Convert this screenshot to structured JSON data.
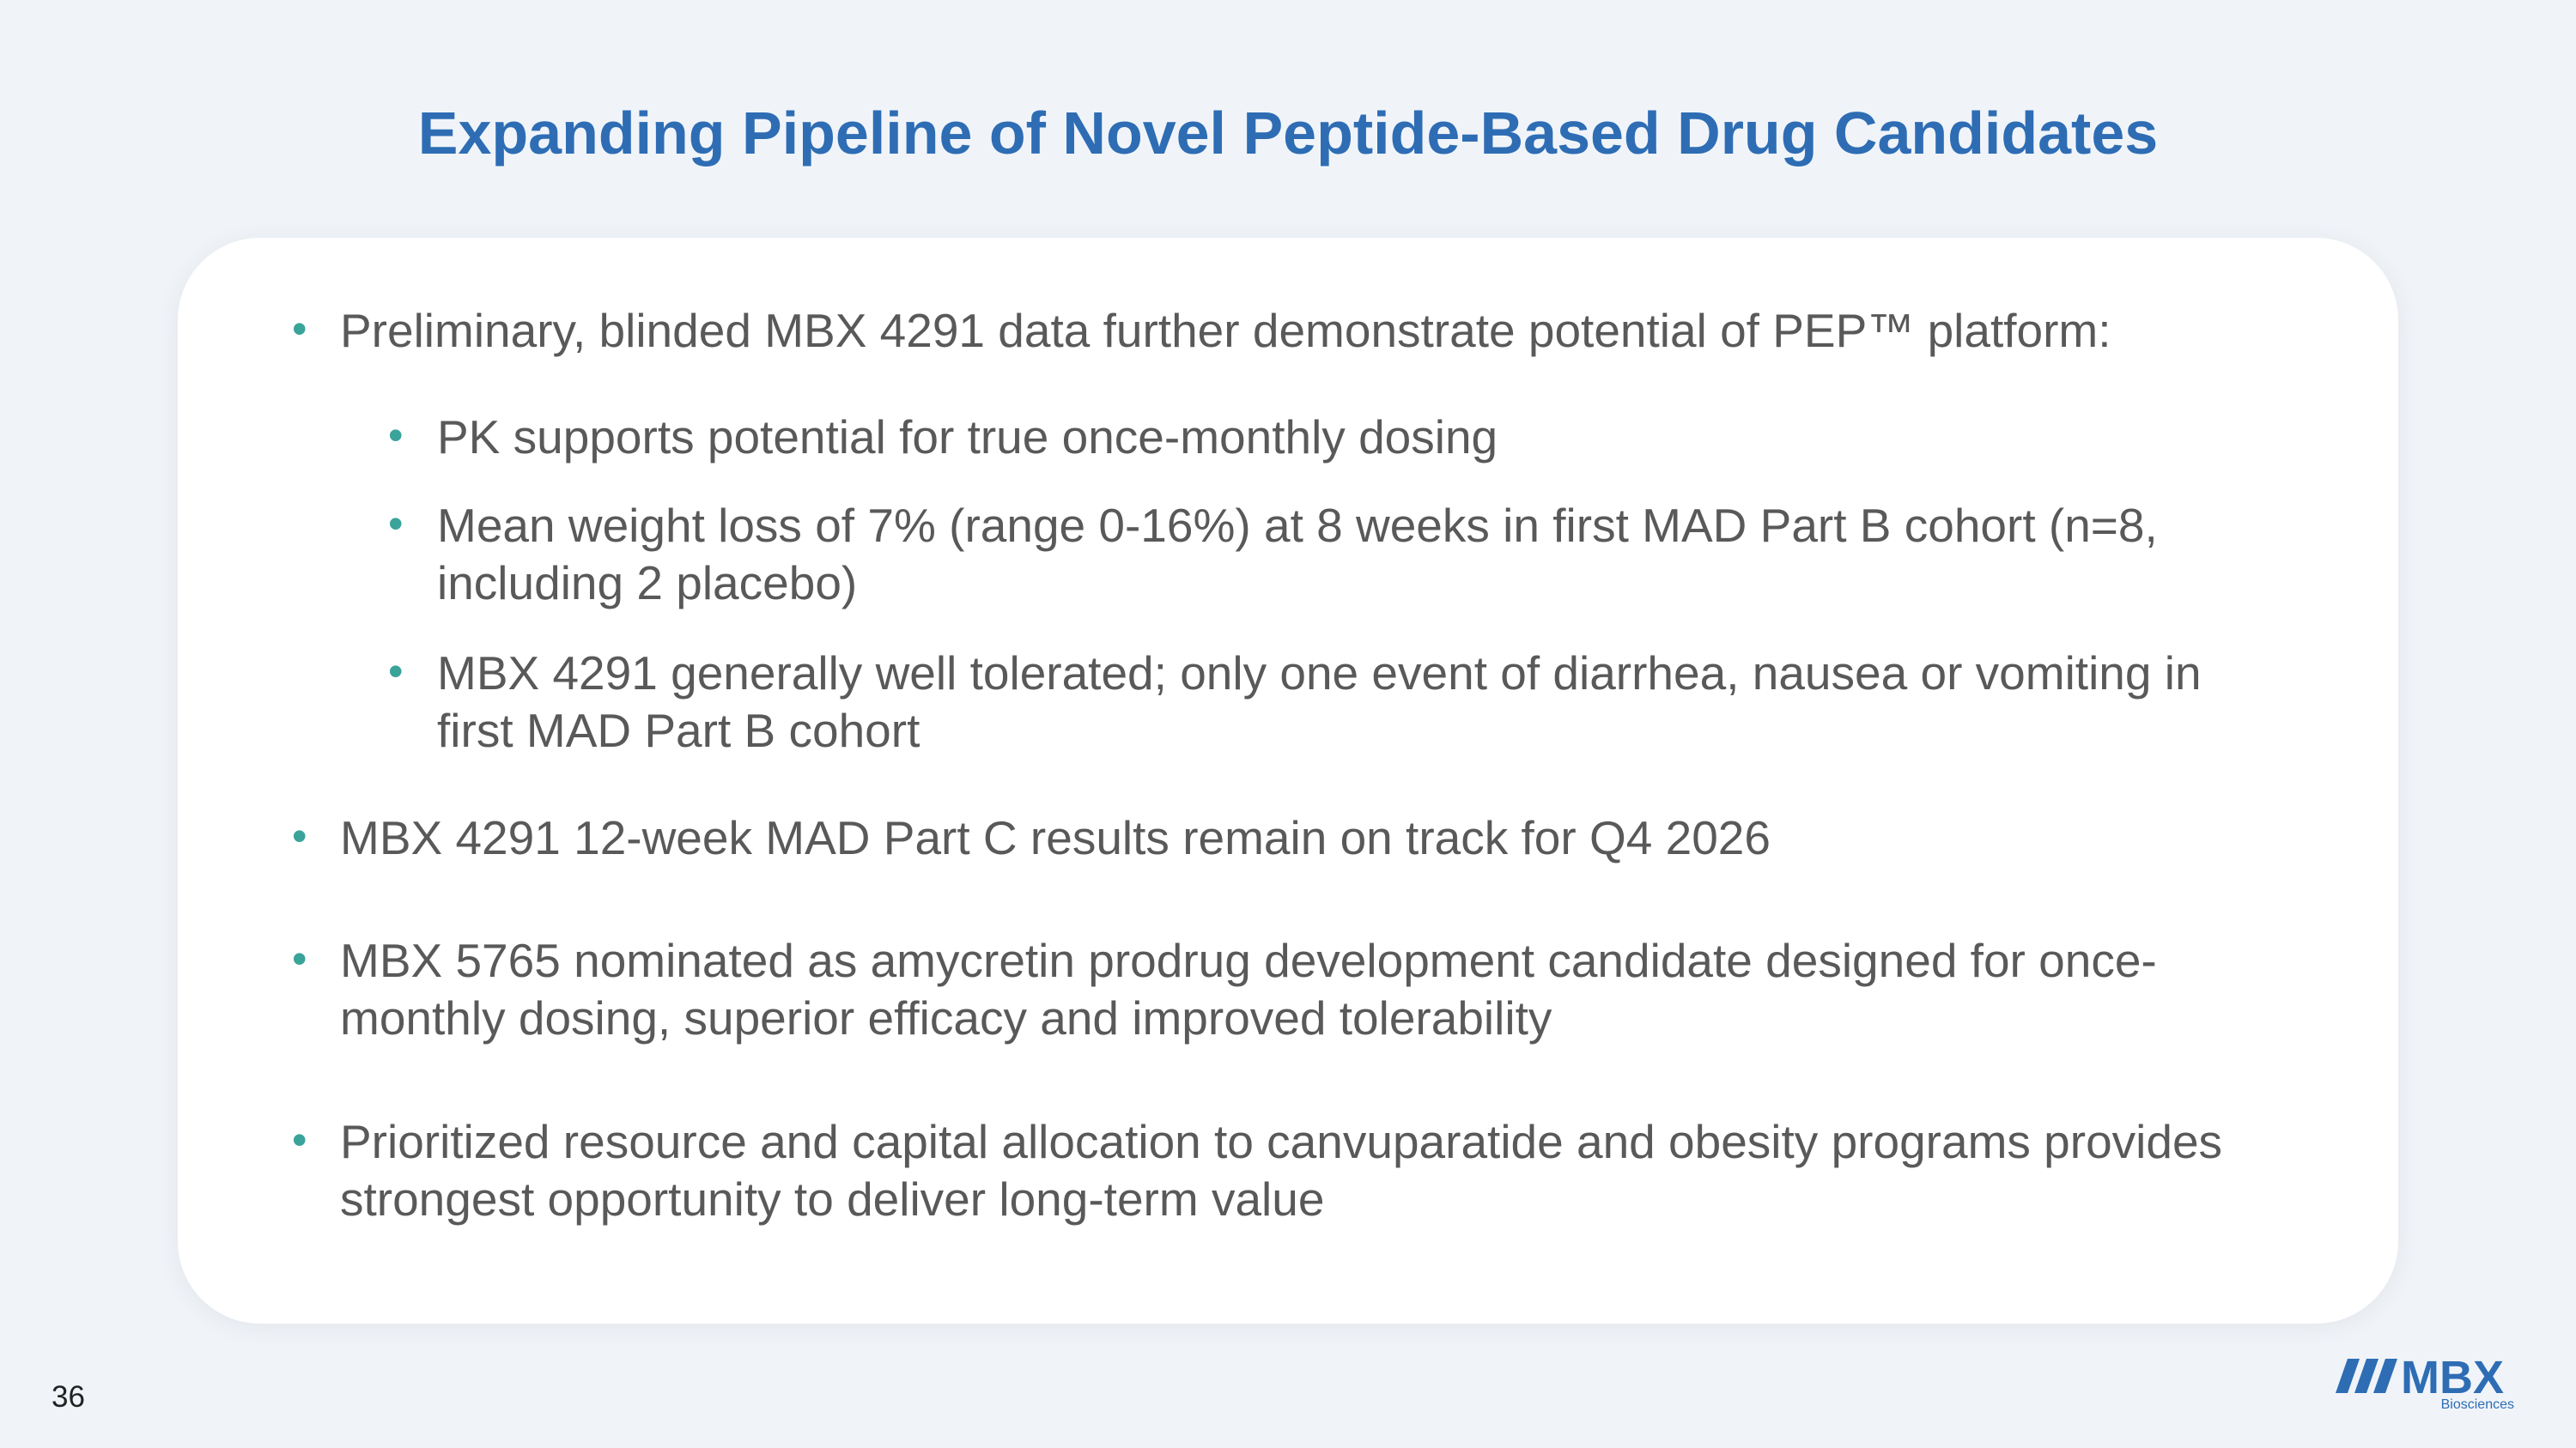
{
  "header": {
    "title": "Expanding Pipeline of Novel Peptide-Based Drug Candidates"
  },
  "bullets": [
    {
      "text": "Preliminary, blinded MBX 4291 data further demonstrate potential of PEP™ platform:",
      "sub": [
        "PK supports potential for true once-monthly dosing",
        "Mean weight loss of 7% (range 0-16%) at 8 weeks in first MAD Part B cohort (n=8, including 2 placebo)",
        "MBX 4291 generally well tolerated; only one event of diarrhea, nausea or vomiting in first MAD Part B cohort"
      ]
    },
    {
      "text": "MBX 4291 12-week MAD Part C results remain on track for Q4 2026"
    },
    {
      "text": "MBX 5765 nominated as amycretin prodrug development candidate designed for once-monthly dosing, superior efficacy and improved tolerability"
    },
    {
      "text": "Prioritized resource and capital allocation to canvuparatide and obesity programs provides strongest opportunity to deliver long-term value"
    }
  ],
  "footer": {
    "page_number": "36",
    "logo_name": "MBX",
    "logo_tagline": "Biosciences"
  }
}
